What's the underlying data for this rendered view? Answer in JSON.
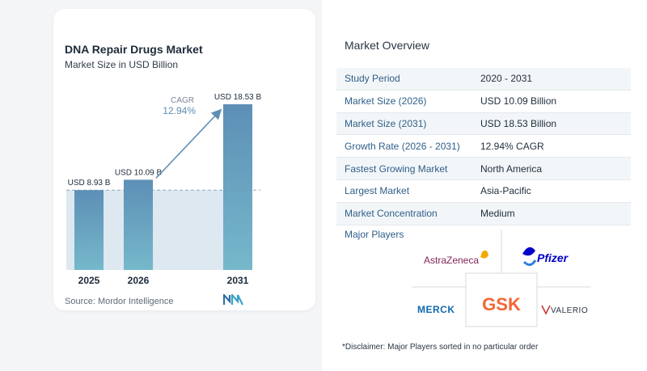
{
  "chart_data": {
    "type": "bar",
    "title": "DNA Repair Drugs Market",
    "subtitle": "Market Size in USD Billion",
    "categories": [
      "2025",
      "2026",
      "2031"
    ],
    "values": [
      8.93,
      10.09,
      18.53
    ],
    "data_labels": [
      "USD 8.93 B",
      "USD 10.09 B",
      "USD 18.53 B"
    ],
    "cagr_label": "CAGR",
    "cagr_value": "12.94%",
    "colors": {
      "bar_top": "#5d8fb6",
      "bar_bottom": "#76b8cb",
      "shade": "#dde8f0",
      "arrow": "#5f8eb4"
    },
    "grid": false
  },
  "source": "Source:  Mordor Intelligence",
  "overview": {
    "title": "Market Overview",
    "rows": [
      {
        "label": "Study Period",
        "value": "2020 - 2031"
      },
      {
        "label": "Market Size (2026)",
        "value": "USD 10.09 Billion"
      },
      {
        "label": "Market Size (2031)",
        "value": "USD 18.53 Billion"
      },
      {
        "label": "Growth Rate (2026 - 2031)",
        "value": "12.94% CAGR"
      },
      {
        "label": "Fastest Growing Market",
        "value": "North America"
      },
      {
        "label": "Largest Market",
        "value": "Asia-Pacific"
      },
      {
        "label": "Market Concentration",
        "value": "Medium"
      }
    ],
    "players_title": "Major Players",
    "players": [
      "AstraZeneca",
      "Pfizer",
      "MERCK",
      "GSK",
      "VALERIO"
    ],
    "disclaimer": "*Disclaimer: Major Players sorted in no particular order"
  }
}
